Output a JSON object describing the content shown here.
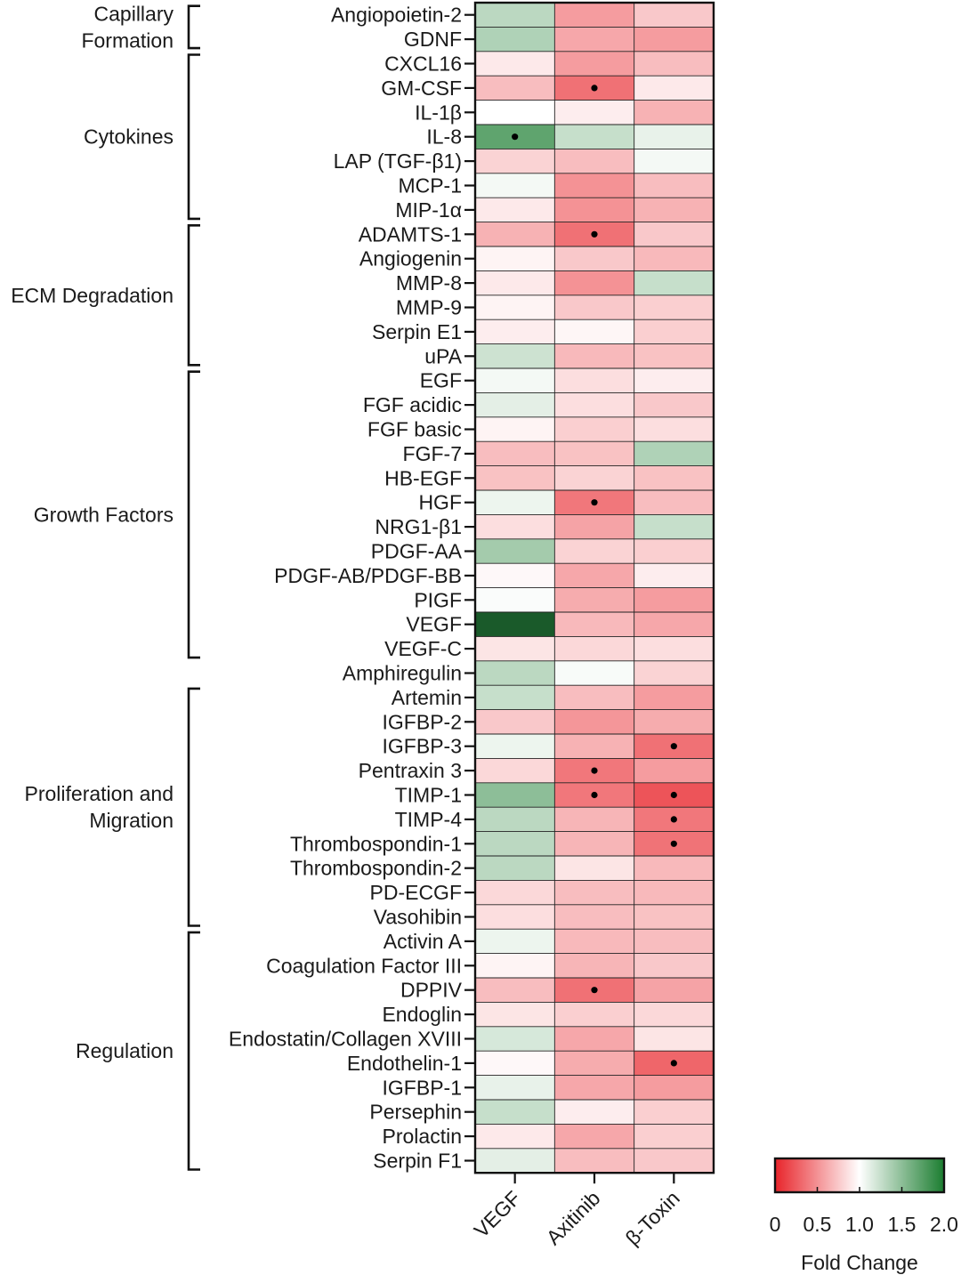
{
  "chart_data": {
    "type": "heatmap",
    "columns": [
      "VEGF",
      "Axitinib",
      "β-Toxin"
    ],
    "rows": [
      "Angiopoietin-2",
      "GDNF",
      "CXCL16",
      "GM-CSF",
      "IL-1β",
      "IL-8",
      "LAP (TGF-β1)",
      "MCP-1",
      "MIP-1α",
      "ADAMTS-1",
      "Angiogenin",
      "MMP-8",
      "MMP-9",
      "Serpin E1",
      "uPA",
      "EGF",
      "FGF acidic",
      "FGF basic",
      "FGF-7",
      "HB-EGF",
      "HGF",
      "NRG1-β1",
      "PDGF-AA",
      "PDGF-AB/PDGF-BB",
      "PIGF",
      "VEGF",
      "VEGF-C",
      "Amphiregulin",
      "Artemin",
      "IGFBP-2",
      "IGFBP-3",
      "Pentraxin 3",
      "TIMP-1",
      "TIMP-4",
      "Thrombospondin-1",
      "Thrombospondin-2",
      "PD-ECGF",
      "Vasohibin",
      "Activin A",
      "Coagulation Factor III",
      "DPPIV",
      "Endoglin",
      "Endostatin/Collagen XVIII",
      "Endothelin-1",
      "IGFBP-1",
      "Persephin",
      "Prolactin",
      "Serpin F1"
    ],
    "values": [
      [
        1.3,
        0.55,
        0.75
      ],
      [
        1.35,
        0.6,
        0.55
      ],
      [
        0.9,
        0.55,
        0.7
      ],
      [
        0.7,
        0.35,
        0.9
      ],
      [
        1.0,
        0.92,
        0.65
      ],
      [
        1.7,
        1.25,
        1.1
      ],
      [
        0.8,
        0.7,
        1.05
      ],
      [
        1.05,
        0.5,
        0.7
      ],
      [
        0.9,
        0.5,
        0.65
      ],
      [
        0.65,
        0.35,
        0.75
      ],
      [
        0.95,
        0.75,
        0.68
      ],
      [
        0.9,
        0.5,
        1.25
      ],
      [
        0.95,
        0.75,
        0.78
      ],
      [
        0.92,
        0.96,
        0.78
      ],
      [
        1.22,
        0.68,
        0.72
      ],
      [
        1.05,
        0.85,
        0.92
      ],
      [
        1.12,
        0.85,
        0.75
      ],
      [
        0.95,
        0.78,
        0.85
      ],
      [
        0.7,
        0.72,
        1.35
      ],
      [
        0.72,
        0.8,
        0.72
      ],
      [
        1.08,
        0.38,
        0.7
      ],
      [
        0.85,
        0.58,
        1.25
      ],
      [
        1.4,
        0.8,
        0.78
      ],
      [
        0.97,
        0.6,
        0.92
      ],
      [
        1.02,
        0.62,
        0.55
      ],
      [
        2.0,
        0.68,
        0.6
      ],
      [
        0.88,
        0.82,
        0.85
      ],
      [
        1.3,
        1.03,
        0.8
      ],
      [
        1.25,
        0.7,
        0.55
      ],
      [
        0.75,
        0.52,
        0.62
      ],
      [
        1.08,
        0.65,
        0.35
      ],
      [
        0.82,
        0.38,
        0.55
      ],
      [
        1.5,
        0.38,
        0.22
      ],
      [
        1.3,
        0.66,
        0.38
      ],
      [
        1.3,
        0.66,
        0.36
      ],
      [
        1.3,
        0.88,
        0.68
      ],
      [
        0.82,
        0.7,
        0.68
      ],
      [
        0.85,
        0.7,
        0.72
      ],
      [
        1.08,
        0.68,
        0.7
      ],
      [
        0.95,
        0.66,
        0.75
      ],
      [
        0.7,
        0.35,
        0.58
      ],
      [
        0.88,
        0.78,
        0.82
      ],
      [
        1.18,
        0.6,
        0.88
      ],
      [
        0.97,
        0.62,
        0.3
      ],
      [
        1.1,
        0.6,
        0.55
      ],
      [
        1.25,
        0.92,
        0.78
      ],
      [
        0.9,
        0.6,
        0.78
      ],
      [
        1.12,
        0.7,
        0.75
      ]
    ],
    "significant": [
      [
        3,
        1
      ],
      [
        5,
        0
      ],
      [
        9,
        1
      ],
      [
        20,
        1
      ],
      [
        30,
        2
      ],
      [
        31,
        1
      ],
      [
        32,
        1
      ],
      [
        32,
        2
      ],
      [
        33,
        2
      ],
      [
        34,
        2
      ],
      [
        40,
        1
      ],
      [
        43,
        2
      ]
    ],
    "groups": [
      {
        "label_lines": [
          "Capillary",
          "Formation"
        ],
        "start": 0,
        "end": 1
      },
      {
        "label_lines": [
          "Cytokines"
        ],
        "start": 2,
        "end": 8
      },
      {
        "label_lines": [
          "ECM Degradation"
        ],
        "start": 9,
        "end": 14
      },
      {
        "label_lines": [
          "Growth Factors"
        ],
        "start": 15,
        "end": 26
      },
      {
        "label_lines": [
          "Proliferation and",
          "Migration"
        ],
        "start": 28,
        "end": 37
      },
      {
        "label_lines": [
          "Regulation"
        ],
        "start": 38,
        "end": 47
      }
    ],
    "colorbar": {
      "label": "Fold Change",
      "min": 0,
      "max": 2.0,
      "ticks": [
        "0",
        "0.5",
        "1.0",
        "1.5",
        "2.0"
      ],
      "colors": [
        "#e8242a",
        "#ffffff",
        "#1b7d30"
      ],
      "legend_position": "bottom-right"
    },
    "colors": {
      "low": "#e8242a",
      "mid": "#ffffff",
      "high": "#1b7d30",
      "max_dark": "#1a5a2a"
    }
  }
}
